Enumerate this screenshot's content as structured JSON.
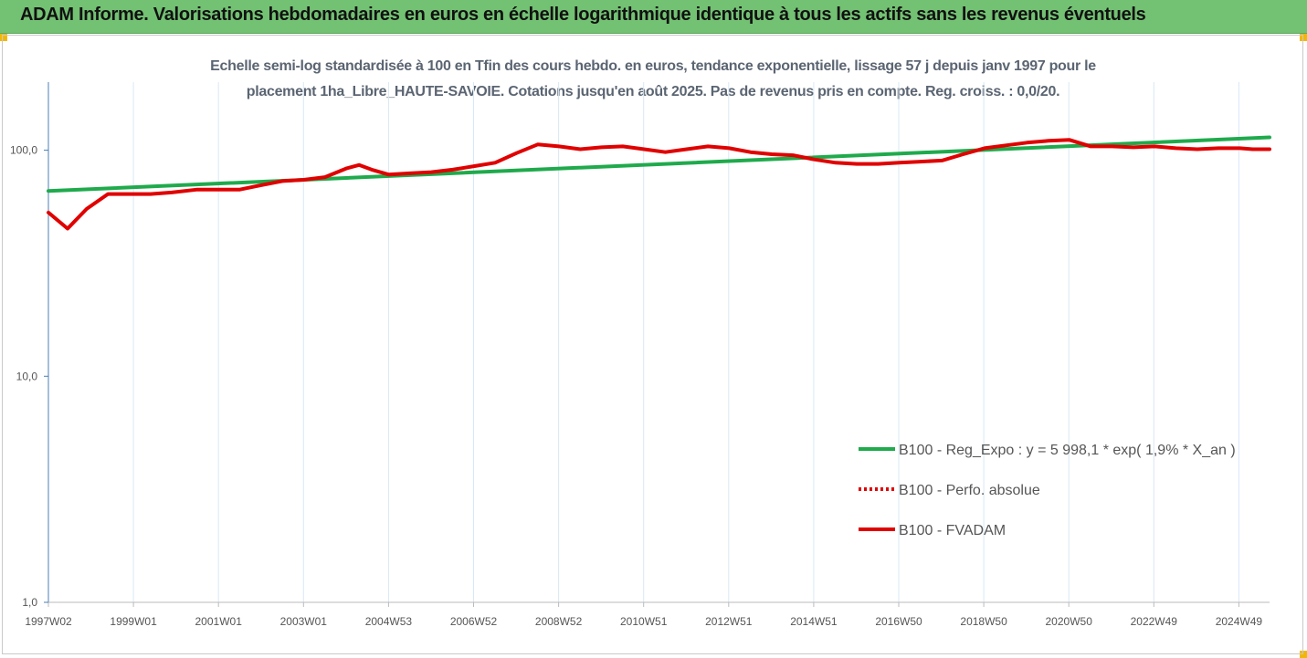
{
  "header": {
    "title": "ADAM Informe. Valorisations hebdomadaires en euros en échelle logarithmique identique à tous les actifs sans les revenus éventuels"
  },
  "chart_data": {
    "type": "line",
    "title_line1": "Echelle semi-log standardisée à 100 en Tfin des cours hebdo. en euros, tendance exponentielle, lissage 57 j depuis janv 1997 pour le",
    "title_line2": "placement 1ha_Libre_HAUTE-SAVOIE. Cotations jusqu'en août 2025. Pas de revenus pris en compte. Reg. croiss. : 0,0/20.",
    "y_scale": "log",
    "ylim": [
      1,
      200
    ],
    "y_ticks": [
      1,
      10,
      100
    ],
    "y_tick_labels": [
      "1,0",
      "10,0",
      "100,0"
    ],
    "x_range": [
      1997.0,
      2025.7
    ],
    "x_tick_labels": [
      "1997W02",
      "1999W01",
      "2001W01",
      "2003W01",
      "2004W53",
      "2006W52",
      "2008W52",
      "2010W51",
      "2012W51",
      "2014W51",
      "2016W50",
      "2018W50",
      "2020W50",
      "2022W49",
      "2024W49"
    ],
    "grid": "vertical",
    "legend_position": "right",
    "series": [
      {
        "name": "B100 - Reg_Expo : y = 5 998,1 * exp( 1,9% *  X_an )",
        "color": "#1faa4c",
        "style": "solid",
        "x": [
          1997.0,
          2025.7
        ],
        "values": [
          66,
          114
        ]
      },
      {
        "name": "B100 - Perfo. absolue",
        "color": "#e00000",
        "style": "dotted",
        "x": [],
        "values": []
      },
      {
        "name": "B100 - FVADAM",
        "color": "#e00000",
        "style": "solid",
        "x": [
          1997.0,
          1997.45,
          1997.9,
          1998.4,
          1998.9,
          1999.4,
          1999.9,
          2000.5,
          2001.0,
          2001.5,
          2002.0,
          2002.5,
          2003.0,
          2003.5,
          2004.0,
          2004.3,
          2004.6,
          2005.0,
          2005.5,
          2006.0,
          2006.5,
          2007.0,
          2007.5,
          2008.0,
          2008.5,
          2009.0,
          2009.5,
          2010.0,
          2010.5,
          2011.0,
          2011.5,
          2012.0,
          2012.5,
          2013.0,
          2013.5,
          2014.0,
          2014.5,
          2015.0,
          2015.5,
          2016.0,
          2016.5,
          2017.0,
          2017.5,
          2018.0,
          2018.5,
          2019.0,
          2019.5,
          2020.0,
          2020.5,
          2021.0,
          2021.5,
          2022.0,
          2022.5,
          2023.0,
          2023.5,
          2024.0,
          2024.5,
          2025.0,
          2025.3,
          2025.7
        ],
        "values": [
          53,
          45,
          55,
          64,
          64,
          64,
          65,
          67,
          67,
          67,
          70,
          73,
          74,
          76,
          83,
          86,
          82,
          78,
          79,
          80,
          82,
          85,
          88,
          97,
          106,
          104,
          101,
          103,
          104,
          101,
          98,
          101,
          104,
          102,
          98,
          96,
          95,
          91,
          88,
          87,
          87,
          88,
          89,
          90,
          96,
          102,
          105,
          108,
          110,
          111,
          104,
          104,
          103,
          104,
          102,
          101,
          102,
          102,
          101,
          101
        ]
      }
    ]
  }
}
